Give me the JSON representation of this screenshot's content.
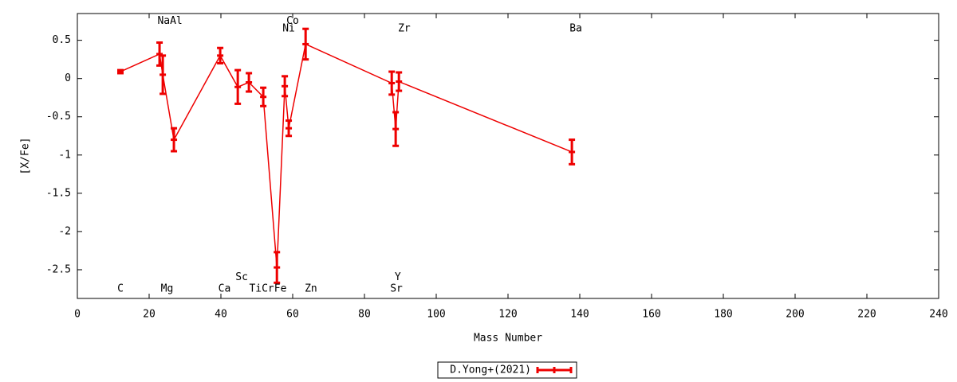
{
  "chart_data": {
    "type": "line",
    "x_label": "Mass Number",
    "y_label": "[X/Fe]",
    "xlim": [
      0,
      240
    ],
    "xticks": [
      0,
      20,
      40,
      60,
      80,
      100,
      120,
      140,
      160,
      180,
      200,
      220,
      240
    ],
    "ylim": [
      -2.875,
      0.85
    ],
    "yticks": [
      0.5,
      0,
      -0.5,
      -1,
      -1.5,
      -2,
      -2.5
    ],
    "grid": false,
    "legend": "bottom",
    "series": [
      {
        "name": "D.Yong+(2021)",
        "color": "#ee0000",
        "x": [
          12,
          22.9,
          23.8,
          26.9,
          39.8,
          44.7,
          47.8,
          51.8,
          55.6,
          57.8,
          58.9,
          63.6,
          87.6,
          88.7,
          89.6,
          137.8
        ],
        "values": [
          0.09,
          0.32,
          0.05,
          -0.8,
          0.3,
          -0.11,
          -0.05,
          -0.24,
          -2.47,
          -0.1,
          -0.65,
          0.45,
          -0.06,
          -0.66,
          -0.04,
          -0.96
        ],
        "errors": [
          0.02,
          0.15,
          0.25,
          0.15,
          0.1,
          0.22,
          0.12,
          0.12,
          0.2,
          0.13,
          0.1,
          0.2,
          0.15,
          0.22,
          0.12,
          0.16
        ]
      }
    ],
    "annotations": [
      {
        "text": "C",
        "x": 12,
        "y": -2.75
      },
      {
        "text": "Mg",
        "x": 25,
        "y": -2.75
      },
      {
        "text": "NaAl",
        "x": 25.8,
        "y": 0.75
      },
      {
        "text": "Ca",
        "x": 41,
        "y": -2.75
      },
      {
        "text": "Sc",
        "x": 45.8,
        "y": -2.6
      },
      {
        "text": "TiCrFe",
        "x": 53.1,
        "y": -2.75
      },
      {
        "text": "Co",
        "x": 60,
        "y": 0.75
      },
      {
        "text": "Ni",
        "x": 58.9,
        "y": 0.65
      },
      {
        "text": "Zn",
        "x": 65.1,
        "y": -2.75
      },
      {
        "text": "Y",
        "x": 89.3,
        "y": -2.6
      },
      {
        "text": "Sr",
        "x": 88.9,
        "y": -2.75
      },
      {
        "text": "Zr",
        "x": 91.1,
        "y": 0.65
      },
      {
        "text": "Ba",
        "x": 138.9,
        "y": 0.65
      }
    ]
  }
}
